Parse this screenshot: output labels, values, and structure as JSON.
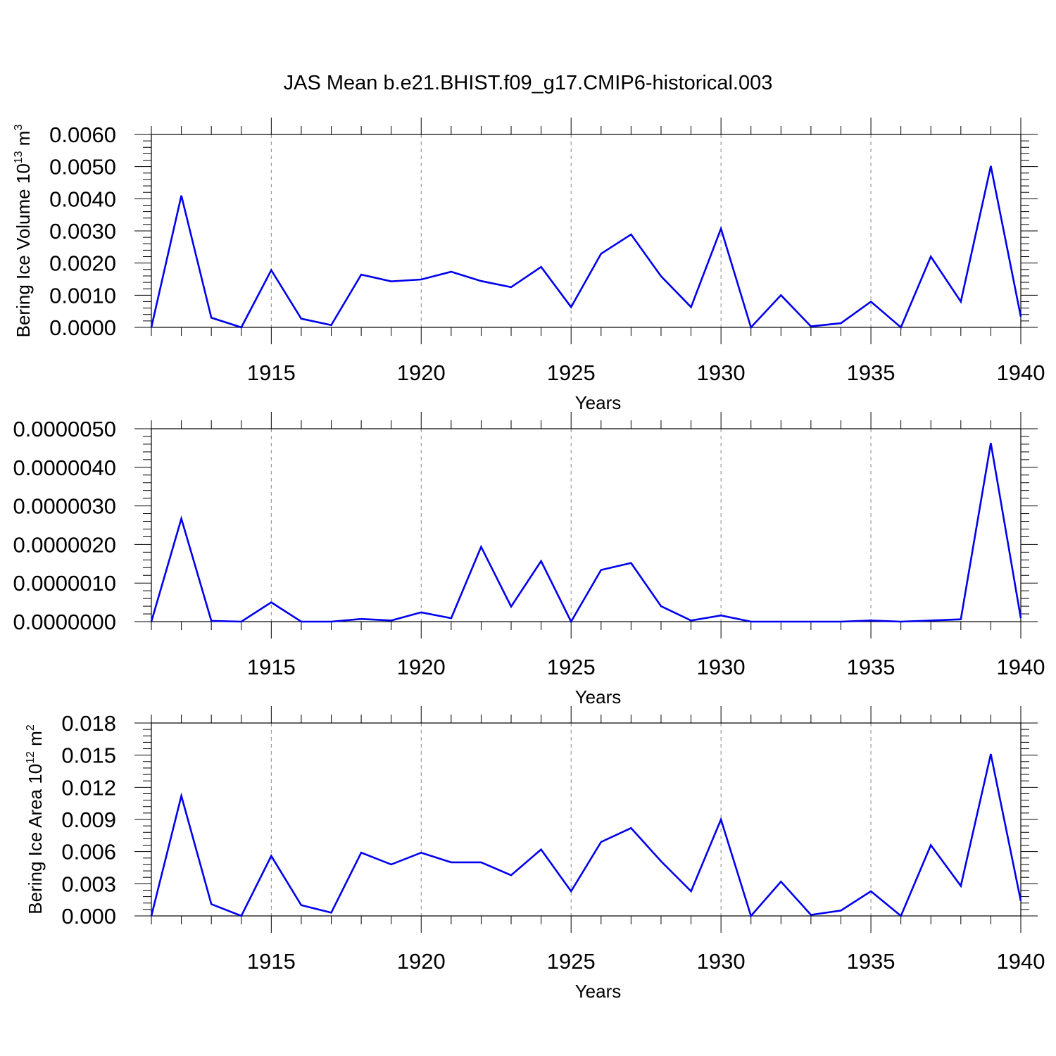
{
  "figure": {
    "title": "JAS Mean b.e21.BHIST.f09_g17.CMIP6-historical.003",
    "line_color": "#0000ee",
    "grid_color": "#888888"
  },
  "chart_data": [
    {
      "type": "line",
      "title": "JAS Mean b.e21.BHIST.f09_g17.CMIP6-historical.003",
      "xlabel": "Years",
      "ylabel": {
        "base": "Bering Ice Volume 10",
        "exp": "13",
        "unit": " m",
        "unit_exp": "3"
      },
      "xlim": [
        1911,
        1940
      ],
      "ylim": [
        0,
        0.006
      ],
      "xticks": [
        1915,
        1920,
        1925,
        1930,
        1935,
        1940
      ],
      "yticks": [
        0,
        0.001,
        0.002,
        0.003,
        0.004,
        0.005,
        0.006
      ],
      "ytick_labels": [
        "0.0000",
        "0.0010",
        "0.0020",
        "0.0030",
        "0.0040",
        "0.0050",
        "0.0060"
      ],
      "grid": "vertical dashed at major x ticks",
      "series": [
        {
          "color": "#0000ee",
          "x": [
            1911,
            1912,
            1913,
            1914,
            1915,
            1916,
            1917,
            1918,
            1919,
            1920,
            1921,
            1922,
            1923,
            1924,
            1925,
            1926,
            1927,
            1928,
            1929,
            1930,
            1931,
            1932,
            1933,
            1934,
            1935,
            1936,
            1937,
            1938,
            1939,
            1940
          ],
          "y": [
            0.0,
            0.0041,
            0.0003,
            0.0,
            0.00178,
            0.00027,
            7e-05,
            0.00164,
            0.00143,
            0.00149,
            0.00173,
            0.00144,
            0.00125,
            0.00188,
            0.00063,
            0.00229,
            0.00289,
            0.00159,
            0.00063,
            0.00307,
            0.0,
            0.001,
            3e-05,
            0.00013,
            0.0008,
            0.0,
            0.0022,
            0.0008,
            0.00502,
            0.00033
          ]
        }
      ]
    },
    {
      "type": "line",
      "xlabel": "Years",
      "ylabel": "",
      "xlim": [
        1911,
        1940
      ],
      "ylim": [
        0,
        5e-06
      ],
      "xticks": [
        1915,
        1920,
        1925,
        1930,
        1935,
        1940
      ],
      "yticks": [
        0,
        1e-06,
        2e-06,
        3e-06,
        4e-06,
        5e-06
      ],
      "ytick_labels": [
        "0.0000000",
        "0.0000010",
        "0.0000020",
        "0.0000030",
        "0.0000040",
        "0.0000050"
      ],
      "grid": "vertical dashed at major x ticks",
      "series": [
        {
          "color": "#0000ee",
          "x": [
            1911,
            1912,
            1913,
            1914,
            1915,
            1916,
            1917,
            1918,
            1919,
            1920,
            1921,
            1922,
            1923,
            1924,
            1925,
            1926,
            1927,
            1928,
            1929,
            1930,
            1931,
            1932,
            1933,
            1934,
            1935,
            1936,
            1937,
            1938,
            1939,
            1940
          ],
          "y": [
            0.0,
            2.67e-06,
            2e-08,
            0.0,
            5e-07,
            0.0,
            0.0,
            7e-08,
            3e-08,
            2.4e-07,
            9e-08,
            1.94e-06,
            3.9e-07,
            1.57e-06,
            0.0,
            1.34e-06,
            1.52e-06,
            4e-07,
            3e-08,
            1.6e-07,
            0.0,
            0.0,
            0.0,
            0.0,
            3e-08,
            0.0,
            3e-08,
            6e-08,
            4.63e-06,
            9e-08
          ]
        }
      ]
    },
    {
      "type": "line",
      "xlabel": "Years",
      "ylabel": {
        "base": "Bering Ice Area 10",
        "exp": "12",
        "unit": " m",
        "unit_exp": "2"
      },
      "xlim": [
        1911,
        1940
      ],
      "ylim": [
        0,
        0.018
      ],
      "xticks": [
        1915,
        1920,
        1925,
        1930,
        1935,
        1940
      ],
      "yticks": [
        0,
        0.003,
        0.006,
        0.009,
        0.012,
        0.015,
        0.018
      ],
      "ytick_labels": [
        "0.000",
        "0.003",
        "0.006",
        "0.009",
        "0.012",
        "0.015",
        "0.018"
      ],
      "grid": "vertical dashed at major x ticks",
      "series": [
        {
          "color": "#0000ee",
          "x": [
            1911,
            1912,
            1913,
            1914,
            1915,
            1916,
            1917,
            1918,
            1919,
            1920,
            1921,
            1922,
            1923,
            1924,
            1925,
            1926,
            1927,
            1928,
            1929,
            1930,
            1931,
            1932,
            1933,
            1934,
            1935,
            1936,
            1937,
            1938,
            1939,
            1940
          ],
          "y": [
            0.0,
            0.0112,
            0.0011,
            0.0,
            0.0056,
            0.001,
            0.0003,
            0.0059,
            0.0048,
            0.0059,
            0.005,
            0.005,
            0.0038,
            0.0062,
            0.0023,
            0.0069,
            0.0082,
            0.0051,
            0.0023,
            0.009,
            0.0,
            0.0032,
            0.0001,
            0.0005,
            0.0023,
            0.0,
            0.0066,
            0.0028,
            0.0151,
            0.0014
          ]
        }
      ]
    }
  ]
}
